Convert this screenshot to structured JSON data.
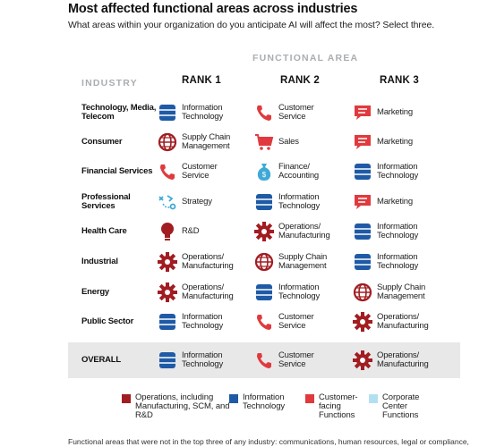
{
  "header": {
    "title": "Most affected functional areas across industries",
    "subtitle": "What areas within your organization do you anticipate AI will affect the most? Select three."
  },
  "table": {
    "functional_area_label": "FUNCTIONAL AREA",
    "industry_label": "INDUSTRY",
    "rank_headers": [
      "RANK 1",
      "RANK 2",
      "RANK 3"
    ],
    "rows": [
      {
        "industry": "Technology, Media, Telecom",
        "ranks": [
          {
            "label": "Information Technology",
            "icon": "database-icon",
            "color": "#1f5aa6"
          },
          {
            "label": "Customer Service",
            "icon": "phone-icon",
            "color": "#e03a3e"
          },
          {
            "label": "Marketing",
            "icon": "chat-icon",
            "color": "#e03a3e"
          }
        ]
      },
      {
        "industry": "Consumer",
        "ranks": [
          {
            "label": "Supply Chain Management",
            "icon": "globe-icon",
            "color": "#a11d22"
          },
          {
            "label": "Sales",
            "icon": "cart-icon",
            "color": "#e03a3e"
          },
          {
            "label": "Marketing",
            "icon": "chat-icon",
            "color": "#e03a3e"
          }
        ]
      },
      {
        "industry": "Financial Services",
        "ranks": [
          {
            "label": "Customer Service",
            "icon": "phone-icon",
            "color": "#e03a3e"
          },
          {
            "label": "Finance/ Accounting",
            "icon": "moneybag-icon",
            "color": "#3fa9d6"
          },
          {
            "label": "Information Technology",
            "icon": "database-icon",
            "color": "#1f5aa6"
          }
        ]
      },
      {
        "industry": "Professional Services",
        "ranks": [
          {
            "label": "Strategy",
            "icon": "strategy-icon",
            "color": "#3fa9d6"
          },
          {
            "label": "Information Technology",
            "icon": "database-icon",
            "color": "#1f5aa6"
          },
          {
            "label": "Marketing",
            "icon": "chat-icon",
            "color": "#e03a3e"
          }
        ]
      },
      {
        "industry": "Health Care",
        "ranks": [
          {
            "label": "R&D",
            "icon": "lightbulb-icon",
            "color": "#a11d22"
          },
          {
            "label": "Operations/ Manufacturing",
            "icon": "gear-icon",
            "color": "#a11d22"
          },
          {
            "label": "Information Technology",
            "icon": "database-icon",
            "color": "#1f5aa6"
          }
        ]
      },
      {
        "industry": "Industrial",
        "ranks": [
          {
            "label": "Operations/ Manufacturing",
            "icon": "gear-icon",
            "color": "#a11d22"
          },
          {
            "label": "Supply Chain Management",
            "icon": "globe-icon",
            "color": "#a11d22"
          },
          {
            "label": "Information Technology",
            "icon": "database-icon",
            "color": "#1f5aa6"
          }
        ]
      },
      {
        "industry": "Energy",
        "ranks": [
          {
            "label": "Operations/ Manufacturing",
            "icon": "gear-icon",
            "color": "#a11d22"
          },
          {
            "label": "Information Technology",
            "icon": "database-icon",
            "color": "#1f5aa6"
          },
          {
            "label": "Supply Chain Management",
            "icon": "globe-icon",
            "color": "#a11d22"
          }
        ]
      },
      {
        "industry": "Public Sector",
        "ranks": [
          {
            "label": "Information Technology",
            "icon": "database-icon",
            "color": "#1f5aa6"
          },
          {
            "label": "Customer Service",
            "icon": "phone-icon",
            "color": "#e03a3e"
          },
          {
            "label": "Operations/ Manufacturing",
            "icon": "gear-icon",
            "color": "#a11d22"
          }
        ]
      }
    ],
    "overall": {
      "industry": "OVERALL",
      "ranks": [
        {
          "label": "Information Technology",
          "icon": "database-icon",
          "color": "#1f5aa6"
        },
        {
          "label": "Customer Service",
          "icon": "phone-icon",
          "color": "#e03a3e"
        },
        {
          "label": "Operations/ Manufacturing",
          "icon": "gear-icon",
          "color": "#a11d22"
        }
      ]
    }
  },
  "legend": [
    {
      "label": "Operations, including Manufacturing, SCM, and R&D",
      "color": "#a11d22"
    },
    {
      "label": "Information Technology",
      "color": "#1f5aa6"
    },
    {
      "label": "Customer-facing Functions",
      "color": "#e03a3e"
    },
    {
      "label": "Corporate Center Functions",
      "color": "#b3e0f0"
    }
  ],
  "footnote": "Functional areas that were not in the top three of any industry: communications, human resources, legal or compliance,"
}
